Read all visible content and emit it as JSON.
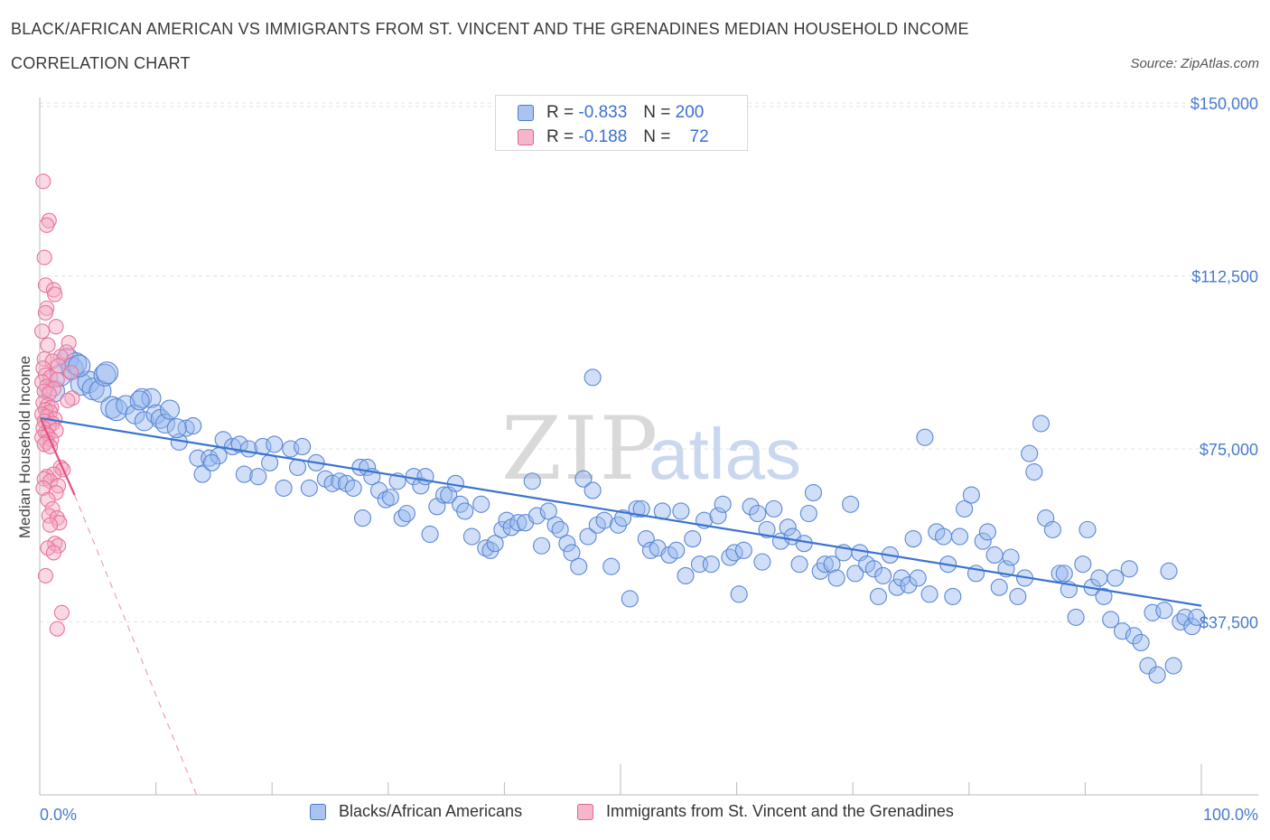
{
  "header": {
    "title_line1": "BLACK/AFRICAN AMERICAN VS IMMIGRANTS FROM ST. VINCENT AND THE GRENADINES MEDIAN HOUSEHOLD INCOME",
    "title_line2": "CORRELATION CHART",
    "source": "Source: ZipAtlas.com"
  },
  "colors": {
    "blue": "#4a7bd0",
    "blue_fill": "#a9c4ef",
    "pink": "#e8628f",
    "pink_fill": "#f4b6ca",
    "grid": "#e3e3e3"
  },
  "legend": {
    "rows": [
      {
        "r_label": "R =",
        "r_value": "-0.833",
        "n_label": "N =",
        "n_value": "200"
      },
      {
        "r_label": "R =",
        "r_value": "-0.188",
        "n_label": "N =",
        "n_value": "72"
      }
    ]
  },
  "watermark": {
    "zip": "ZIP",
    "atlas": "atlas"
  },
  "chart_data": {
    "type": "scatter",
    "xlabel": "",
    "ylabel": "Median Household Income",
    "xlim": [
      0,
      100
    ],
    "ylim": [
      0,
      150000
    ],
    "x_tick_labels": [
      "0.0%",
      "100.0%"
    ],
    "y_ticks": [
      37500,
      75000,
      112500,
      150000
    ],
    "y_tick_labels": [
      "$37,500",
      "$75,000",
      "$112,500",
      "$150,000"
    ],
    "grid": true,
    "legend_position": "bottom",
    "series": [
      {
        "name": "Blacks/African Americans",
        "color": "#4a7bd0",
        "trend": {
          "x": [
            0.0,
            100.0
          ],
          "y": [
            81700,
            41000
          ]
        },
        "points": [
          [
            1.2,
            87500
          ],
          [
            1.8,
            91000
          ],
          [
            2.4,
            94500
          ],
          [
            2.8,
            92500
          ],
          [
            3.1,
            93500
          ],
          [
            3.6,
            89000
          ],
          [
            4.2,
            89500
          ],
          [
            4.6,
            88000
          ],
          [
            5.2,
            87500
          ],
          [
            5.6,
            91000
          ],
          [
            6.2,
            84000
          ],
          [
            6.6,
            83500
          ],
          [
            7.4,
            84500
          ],
          [
            8.2,
            82500
          ],
          [
            8.8,
            86000
          ],
          [
            9.0,
            81000
          ],
          [
            9.6,
            86000
          ],
          [
            10.0,
            82500
          ],
          [
            10.4,
            81500
          ],
          [
            10.8,
            80500
          ],
          [
            11.2,
            83500
          ],
          [
            12.0,
            76500
          ],
          [
            12.6,
            79500
          ],
          [
            13.2,
            80000
          ],
          [
            13.6,
            73000
          ],
          [
            14.0,
            69500
          ],
          [
            14.6,
            73000
          ],
          [
            15.4,
            73500
          ],
          [
            15.8,
            77000
          ],
          [
            16.6,
            75500
          ],
          [
            17.2,
            76000
          ],
          [
            17.6,
            69500
          ],
          [
            18.0,
            75000
          ],
          [
            18.8,
            69000
          ],
          [
            19.2,
            75500
          ],
          [
            19.8,
            72000
          ],
          [
            20.2,
            76000
          ],
          [
            21.0,
            66500
          ],
          [
            21.6,
            75000
          ],
          [
            22.2,
            71000
          ],
          [
            22.6,
            75500
          ],
          [
            23.2,
            66500
          ],
          [
            23.8,
            72000
          ],
          [
            24.6,
            68500
          ],
          [
            25.2,
            67500
          ],
          [
            25.8,
            68000
          ],
          [
            26.4,
            67500
          ],
          [
            27.0,
            66500
          ],
          [
            27.6,
            71000
          ],
          [
            27.8,
            60000
          ],
          [
            28.2,
            71000
          ],
          [
            28.6,
            69000
          ],
          [
            29.2,
            66000
          ],
          [
            29.8,
            64000
          ],
          [
            30.2,
            64500
          ],
          [
            30.8,
            68000
          ],
          [
            31.2,
            60000
          ],
          [
            31.6,
            61000
          ],
          [
            32.2,
            69000
          ],
          [
            32.8,
            67000
          ],
          [
            33.2,
            69000
          ],
          [
            33.6,
            56500
          ],
          [
            34.2,
            62500
          ],
          [
            34.8,
            65000
          ],
          [
            35.2,
            65000
          ],
          [
            35.8,
            67500
          ],
          [
            36.2,
            63000
          ],
          [
            36.6,
            61500
          ],
          [
            37.2,
            56000
          ],
          [
            38.0,
            63000
          ],
          [
            38.4,
            53500
          ],
          [
            38.8,
            53000
          ],
          [
            39.2,
            54500
          ],
          [
            39.8,
            57500
          ],
          [
            40.2,
            59500
          ],
          [
            40.6,
            58000
          ],
          [
            41.2,
            59000
          ],
          [
            41.8,
            59000
          ],
          [
            42.4,
            68000
          ],
          [
            42.8,
            60500
          ],
          [
            43.2,
            54000
          ],
          [
            43.8,
            61500
          ],
          [
            44.4,
            58500
          ],
          [
            44.8,
            57500
          ],
          [
            45.4,
            54500
          ],
          [
            45.8,
            52500
          ],
          [
            46.4,
            49500
          ],
          [
            46.8,
            68500
          ],
          [
            47.2,
            56000
          ],
          [
            47.6,
            66000
          ],
          [
            48.0,
            58500
          ],
          [
            48.6,
            59500
          ],
          [
            49.2,
            49500
          ],
          [
            49.8,
            58500
          ],
          [
            50.2,
            60000
          ],
          [
            50.8,
            42500
          ],
          [
            51.4,
            62000
          ],
          [
            51.8,
            62000
          ],
          [
            52.2,
            55500
          ],
          [
            52.6,
            53000
          ],
          [
            53.2,
            53500
          ],
          [
            53.6,
            61500
          ],
          [
            54.2,
            52000
          ],
          [
            54.8,
            53000
          ],
          [
            55.2,
            61500
          ],
          [
            55.6,
            47500
          ],
          [
            56.2,
            55500
          ],
          [
            56.8,
            50000
          ],
          [
            57.2,
            59500
          ],
          [
            57.8,
            50000
          ],
          [
            58.4,
            60500
          ],
          [
            58.8,
            63000
          ],
          [
            59.4,
            51500
          ],
          [
            59.8,
            52500
          ],
          [
            60.2,
            43500
          ],
          [
            60.6,
            53000
          ],
          [
            61.2,
            62500
          ],
          [
            61.8,
            61000
          ],
          [
            62.2,
            50500
          ],
          [
            62.6,
            57500
          ],
          [
            63.2,
            62000
          ],
          [
            63.8,
            55000
          ],
          [
            64.4,
            58000
          ],
          [
            64.8,
            56000
          ],
          [
            65.4,
            50000
          ],
          [
            65.8,
            54500
          ],
          [
            66.2,
            61000
          ],
          [
            66.6,
            65500
          ],
          [
            67.2,
            48500
          ],
          [
            67.6,
            50000
          ],
          [
            68.2,
            50000
          ],
          [
            68.6,
            47000
          ],
          [
            69.2,
            52500
          ],
          [
            69.8,
            63000
          ],
          [
            70.2,
            48000
          ],
          [
            70.6,
            52500
          ],
          [
            71.2,
            50000
          ],
          [
            71.8,
            49000
          ],
          [
            72.2,
            43000
          ],
          [
            72.6,
            47500
          ],
          [
            73.2,
            52000
          ],
          [
            73.8,
            45000
          ],
          [
            74.2,
            47000
          ],
          [
            74.8,
            45500
          ],
          [
            75.2,
            55500
          ],
          [
            75.6,
            47000
          ],
          [
            76.2,
            77500
          ],
          [
            76.6,
            43500
          ],
          [
            77.2,
            57000
          ],
          [
            77.8,
            56000
          ],
          [
            78.2,
            50000
          ],
          [
            78.6,
            43000
          ],
          [
            79.2,
            56000
          ],
          [
            79.6,
            62000
          ],
          [
            80.2,
            65000
          ],
          [
            80.6,
            48000
          ],
          [
            81.2,
            55000
          ],
          [
            81.6,
            57000
          ],
          [
            82.2,
            52000
          ],
          [
            82.6,
            45000
          ],
          [
            83.2,
            49000
          ],
          [
            83.6,
            51500
          ],
          [
            84.2,
            43000
          ],
          [
            84.8,
            47000
          ],
          [
            85.2,
            74000
          ],
          [
            85.6,
            70000
          ],
          [
            86.2,
            80500
          ],
          [
            86.6,
            60000
          ],
          [
            87.2,
            57500
          ],
          [
            87.8,
            48000
          ],
          [
            88.2,
            48000
          ],
          [
            88.6,
            44500
          ],
          [
            89.2,
            38500
          ],
          [
            89.8,
            50000
          ],
          [
            90.2,
            57500
          ],
          [
            90.6,
            45000
          ],
          [
            91.2,
            47000
          ],
          [
            91.6,
            43000
          ],
          [
            92.2,
            38000
          ],
          [
            92.6,
            47000
          ],
          [
            93.2,
            35500
          ],
          [
            93.8,
            49000
          ],
          [
            94.2,
            34500
          ],
          [
            94.8,
            33000
          ],
          [
            95.4,
            28000
          ],
          [
            95.8,
            39500
          ],
          [
            96.2,
            26000
          ],
          [
            96.8,
            40000
          ],
          [
            97.2,
            48500
          ],
          [
            97.6,
            28000
          ],
          [
            98.2,
            37500
          ],
          [
            98.6,
            38500
          ],
          [
            99.2,
            36500
          ],
          [
            99.6,
            38500
          ],
          [
            47.6,
            90500
          ],
          [
            5.8,
            91500
          ],
          [
            3.4,
            93000
          ],
          [
            8.6,
            85500
          ],
          [
            11.8,
            79500
          ],
          [
            14.8,
            72000
          ]
        ]
      },
      {
        "name": "Immigrants from St. Vincent and the Grenadines",
        "color": "#e8628f",
        "trend": {
          "x": [
            0.0,
            3.0
          ],
          "y": [
            82000,
            65000
          ]
        },
        "trend_ext": {
          "x": [
            3.0,
            13.5
          ],
          "y": [
            65000,
            0
          ]
        },
        "points": [
          [
            0.3,
            133000
          ],
          [
            0.8,
            124500
          ],
          [
            0.6,
            123500
          ],
          [
            0.4,
            116500
          ],
          [
            0.5,
            110500
          ],
          [
            1.2,
            109500
          ],
          [
            1.3,
            108500
          ],
          [
            0.6,
            105500
          ],
          [
            0.5,
            104500
          ],
          [
            1.4,
            101500
          ],
          [
            0.2,
            100500
          ],
          [
            2.5,
            98000
          ],
          [
            0.7,
            97500
          ],
          [
            2.3,
            96000
          ],
          [
            1.8,
            95000
          ],
          [
            0.4,
            94500
          ],
          [
            1.1,
            94000
          ],
          [
            1.6,
            93000
          ],
          [
            0.3,
            92500
          ],
          [
            2.7,
            91500
          ],
          [
            0.5,
            91000
          ],
          [
            0.9,
            90500
          ],
          [
            1.5,
            90000
          ],
          [
            0.2,
            89500
          ],
          [
            0.6,
            88500
          ],
          [
            1.2,
            88000
          ],
          [
            0.4,
            87500
          ],
          [
            0.8,
            87000
          ],
          [
            2.8,
            86000
          ],
          [
            2.4,
            85500
          ],
          [
            0.3,
            85000
          ],
          [
            0.7,
            84500
          ],
          [
            1.0,
            84000
          ],
          [
            0.5,
            83500
          ],
          [
            0.9,
            83000
          ],
          [
            0.2,
            82500
          ],
          [
            0.6,
            82000
          ],
          [
            1.3,
            81500
          ],
          [
            0.4,
            81000
          ],
          [
            1.1,
            80500
          ],
          [
            0.8,
            80000
          ],
          [
            0.3,
            79500
          ],
          [
            1.4,
            79000
          ],
          [
            0.5,
            78500
          ],
          [
            0.7,
            78000
          ],
          [
            0.2,
            77500
          ],
          [
            1.0,
            77000
          ],
          [
            0.6,
            76500
          ],
          [
            0.4,
            76000
          ],
          [
            0.9,
            75500
          ],
          [
            1.8,
            71000
          ],
          [
            2.0,
            70500
          ],
          [
            1.2,
            69500
          ],
          [
            0.6,
            69000
          ],
          [
            0.4,
            68500
          ],
          [
            0.9,
            68000
          ],
          [
            1.6,
            67000
          ],
          [
            0.3,
            66500
          ],
          [
            1.4,
            65500
          ],
          [
            0.7,
            64000
          ],
          [
            1.1,
            62000
          ],
          [
            0.8,
            60500
          ],
          [
            1.5,
            60000
          ],
          [
            1.7,
            59000
          ],
          [
            0.9,
            58500
          ],
          [
            1.3,
            54500
          ],
          [
            1.6,
            54000
          ],
          [
            0.7,
            53500
          ],
          [
            1.2,
            52500
          ],
          [
            0.5,
            47500
          ],
          [
            1.9,
            39500
          ],
          [
            1.5,
            36000
          ]
        ]
      }
    ]
  },
  "bottom_legend": {
    "items": [
      {
        "label": "Blacks/African Americans"
      },
      {
        "label": "Immigrants from St. Vincent and the Grenadines"
      }
    ]
  }
}
